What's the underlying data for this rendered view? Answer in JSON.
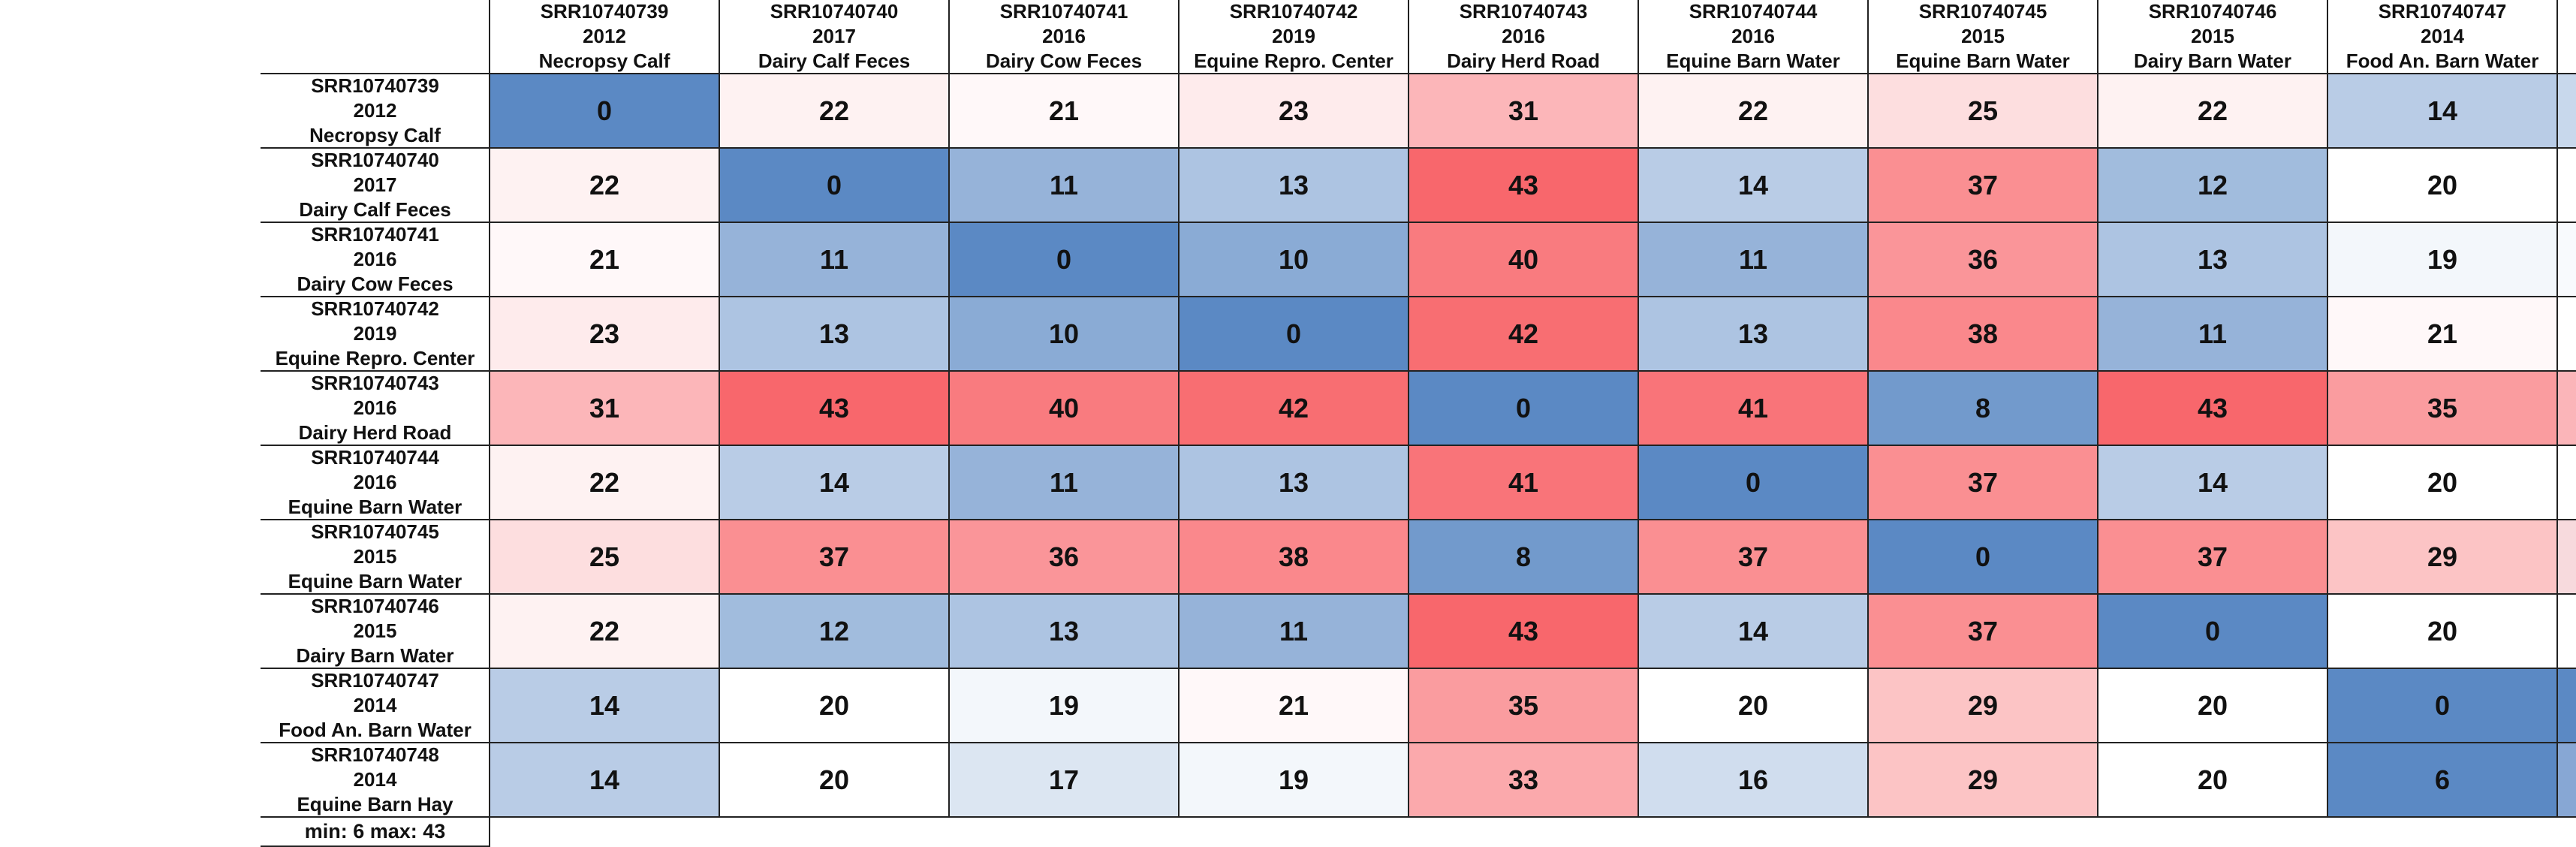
{
  "chart_data": {
    "type": "heatmap",
    "columns": [
      {
        "id": "SRR10740739",
        "year": "2012",
        "source": "Necropsy Calf"
      },
      {
        "id": "SRR10740740",
        "year": "2017",
        "source": "Dairy Calf Feces"
      },
      {
        "id": "SRR10740741",
        "year": "2016",
        "source": "Dairy Cow Feces"
      },
      {
        "id": "SRR10740742",
        "year": "2019",
        "source": "Equine Repro. Center"
      },
      {
        "id": "SRR10740743",
        "year": "2016",
        "source": "Dairy Herd Road"
      },
      {
        "id": "SRR10740744",
        "year": "2016",
        "source": "Equine Barn  Water"
      },
      {
        "id": "SRR10740745",
        "year": "2015",
        "source": "Equine Barn Water"
      },
      {
        "id": "SRR10740746",
        "year": "2015",
        "source": "Dairy Barn Water"
      },
      {
        "id": "SRR10740747",
        "year": "2014",
        "source": "Food An. Barn Water"
      }
    ],
    "rows": [
      {
        "id": "SRR10740739",
        "year": "2012",
        "source": "Necropsy Calf"
      },
      {
        "id": "SRR10740740",
        "year": "2017",
        "source": "Dairy Calf Feces"
      },
      {
        "id": "SRR10740741",
        "year": "2016",
        "source": "Dairy Cow Feces"
      },
      {
        "id": "SRR10740742",
        "year": "2019",
        "source": "Equine Repro. Center"
      },
      {
        "id": "SRR10740743",
        "year": "2016",
        "source": "Dairy Herd Road"
      },
      {
        "id": "SRR10740744",
        "year": "2016",
        "source": "Equine Barn  Water"
      },
      {
        "id": "SRR10740745",
        "year": "2015",
        "source": "Equine Barn Water"
      },
      {
        "id": "SRR10740746",
        "year": "2015",
        "source": "Dairy Barn Water"
      },
      {
        "id": "SRR10740747",
        "year": "2014",
        "source": "Food An. Barn Water"
      },
      {
        "id": "SRR10740748",
        "year": "2014",
        "source": "Equine Barn Hay"
      }
    ],
    "values": [
      [
        0,
        22,
        21,
        23,
        31,
        22,
        25,
        22,
        14
      ],
      [
        22,
        0,
        11,
        13,
        43,
        14,
        37,
        12,
        20
      ],
      [
        21,
        11,
        0,
        10,
        40,
        11,
        36,
        13,
        19
      ],
      [
        23,
        13,
        10,
        0,
        42,
        13,
        38,
        11,
        21
      ],
      [
        31,
        43,
        40,
        42,
        0,
        41,
        8,
        43,
        35
      ],
      [
        22,
        14,
        11,
        13,
        41,
        0,
        37,
        14,
        20
      ],
      [
        25,
        37,
        36,
        38,
        8,
        37,
        0,
        37,
        29
      ],
      [
        22,
        12,
        13,
        11,
        43,
        14,
        37,
        0,
        20
      ],
      [
        14,
        20,
        19,
        21,
        35,
        20,
        29,
        20,
        0
      ],
      [
        14,
        20,
        17,
        19,
        33,
        16,
        29,
        20,
        6
      ]
    ],
    "min": 6,
    "max": 43,
    "min_color": "#5b89c4",
    "mid_color": "#ffffff",
    "max_color": "#f8676c",
    "cut_off_column_fill_hex": [
      "#c8d8ec",
      "#ffffff",
      "#f8fafd",
      "#ffffff",
      "#fbb5b9",
      "#ffffff",
      "#f7dadd",
      "#ffffff",
      "#5b89c4",
      "#87a7d4"
    ]
  },
  "footer_label": "min: 6 max: 43"
}
